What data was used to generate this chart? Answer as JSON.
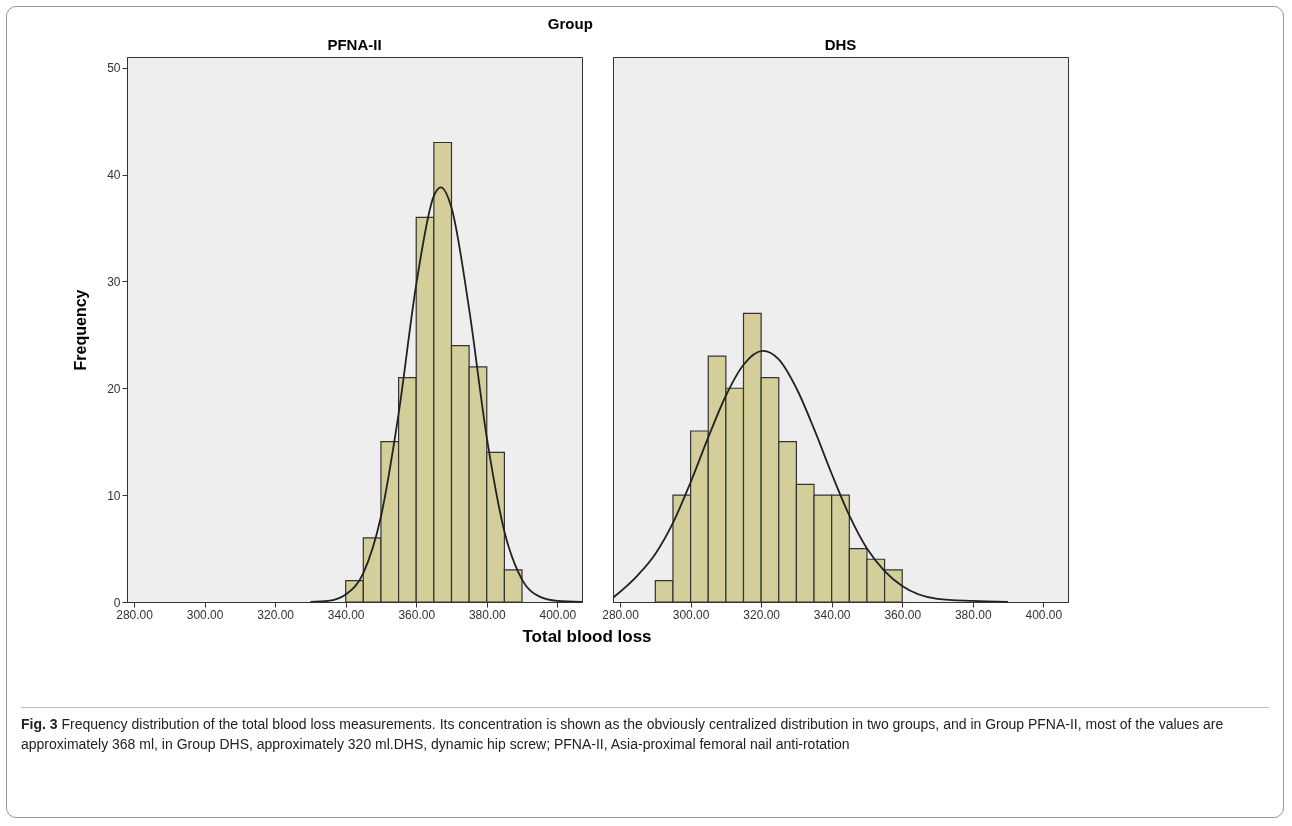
{
  "chart_data": [
    {
      "type": "histogram",
      "title": "PFNA-II",
      "ylabel": "Frequency",
      "xlabel": "Total blood loss",
      "annotations": [
        "Group",
        "Fig. 3",
        "Frequency distribution of the total blood loss measurements. Its concentration is shown as the obviously centralized distribution in two groups, and in Group PFNA-II, most of the values are approximately 368 ml, in Group DHS, approximately 320 ml.DHS, dynamic hip screw; PFNA-II, Asia-proximal femoral nail anti-rotation"
      ],
      "xlim": [
        278,
        407
      ],
      "xticks": [
        {
          "value": 280,
          "label": "280.00"
        },
        {
          "value": 300,
          "label": "300.00"
        },
        {
          "value": 320,
          "label": "320.00"
        },
        {
          "value": 340,
          "label": "340.00"
        },
        {
          "value": 360,
          "label": "360.00"
        },
        {
          "value": 380,
          "label": "380.00"
        },
        {
          "value": 400,
          "label": "400.00"
        }
      ],
      "ylim": [
        0,
        51
      ],
      "yticks": [
        0,
        10,
        20,
        30,
        40,
        50
      ],
      "series": [
        {
          "bins": [
            340,
            345,
            350,
            355,
            360,
            365,
            370,
            375,
            380,
            385,
            390
          ],
          "values": [
            2,
            6,
            15,
            21,
            36,
            43,
            24,
            22,
            14,
            3
          ],
          "color": "#d3ce9a"
        },
        {
          "type": "line",
          "color": "#222222",
          "x": [
            330,
            335,
            340,
            345,
            350,
            355,
            360,
            365,
            367,
            370,
            375,
            380,
            385,
            390,
            395,
            400,
            407
          ],
          "values": [
            0,
            0.1,
            0.7,
            2.7,
            8,
            17.6,
            29.7,
            38,
            38.8,
            36.9,
            27.4,
            15.4,
            6.6,
            2.1,
            0.5,
            0.1,
            0
          ]
        }
      ]
    },
    {
      "type": "histogram",
      "title": "DHS",
      "tick_labels": "x",
      "xlim": [
        278,
        407
      ],
      "xticks": [
        {
          "value": 280,
          "label": "280.00"
        },
        {
          "value": 300,
          "label": "300.00"
        },
        {
          "value": 320,
          "label": "320.00"
        },
        {
          "value": 340,
          "label": "340.00"
        },
        {
          "value": 360,
          "label": "360.00"
        },
        {
          "value": 380,
          "label": "380.00"
        },
        {
          "value": 400,
          "label": "400.00"
        }
      ],
      "ylim": [
        0,
        51
      ],
      "yticks": [
        0,
        10,
        20,
        30,
        40,
        50
      ],
      "series": [
        {
          "bins": [
            290,
            295,
            300,
            305,
            310,
            315,
            320,
            325,
            330,
            335,
            340,
            345,
            350,
            355,
            360
          ],
          "values": [
            2,
            10,
            16,
            23,
            20,
            27,
            21,
            15,
            11,
            10,
            10,
            5,
            4,
            3
          ],
          "color": "#d3ce9a"
        },
        {
          "type": "line",
          "color": "#222222",
          "x": [
            278,
            285,
            290,
            295,
            300,
            305,
            310,
            315,
            320.5,
            325,
            330,
            335,
            340,
            345,
            350,
            355,
            360,
            370,
            380,
            390
          ],
          "values": [
            0.4,
            2.5,
            4.5,
            7.4,
            11.2,
            15.4,
            19.3,
            22.2,
            23.5,
            22.7,
            20,
            16.2,
            12,
            8.1,
            5,
            2.9,
            1.5,
            0.3,
            0.1,
            0
          ]
        }
      ]
    }
  ]
}
